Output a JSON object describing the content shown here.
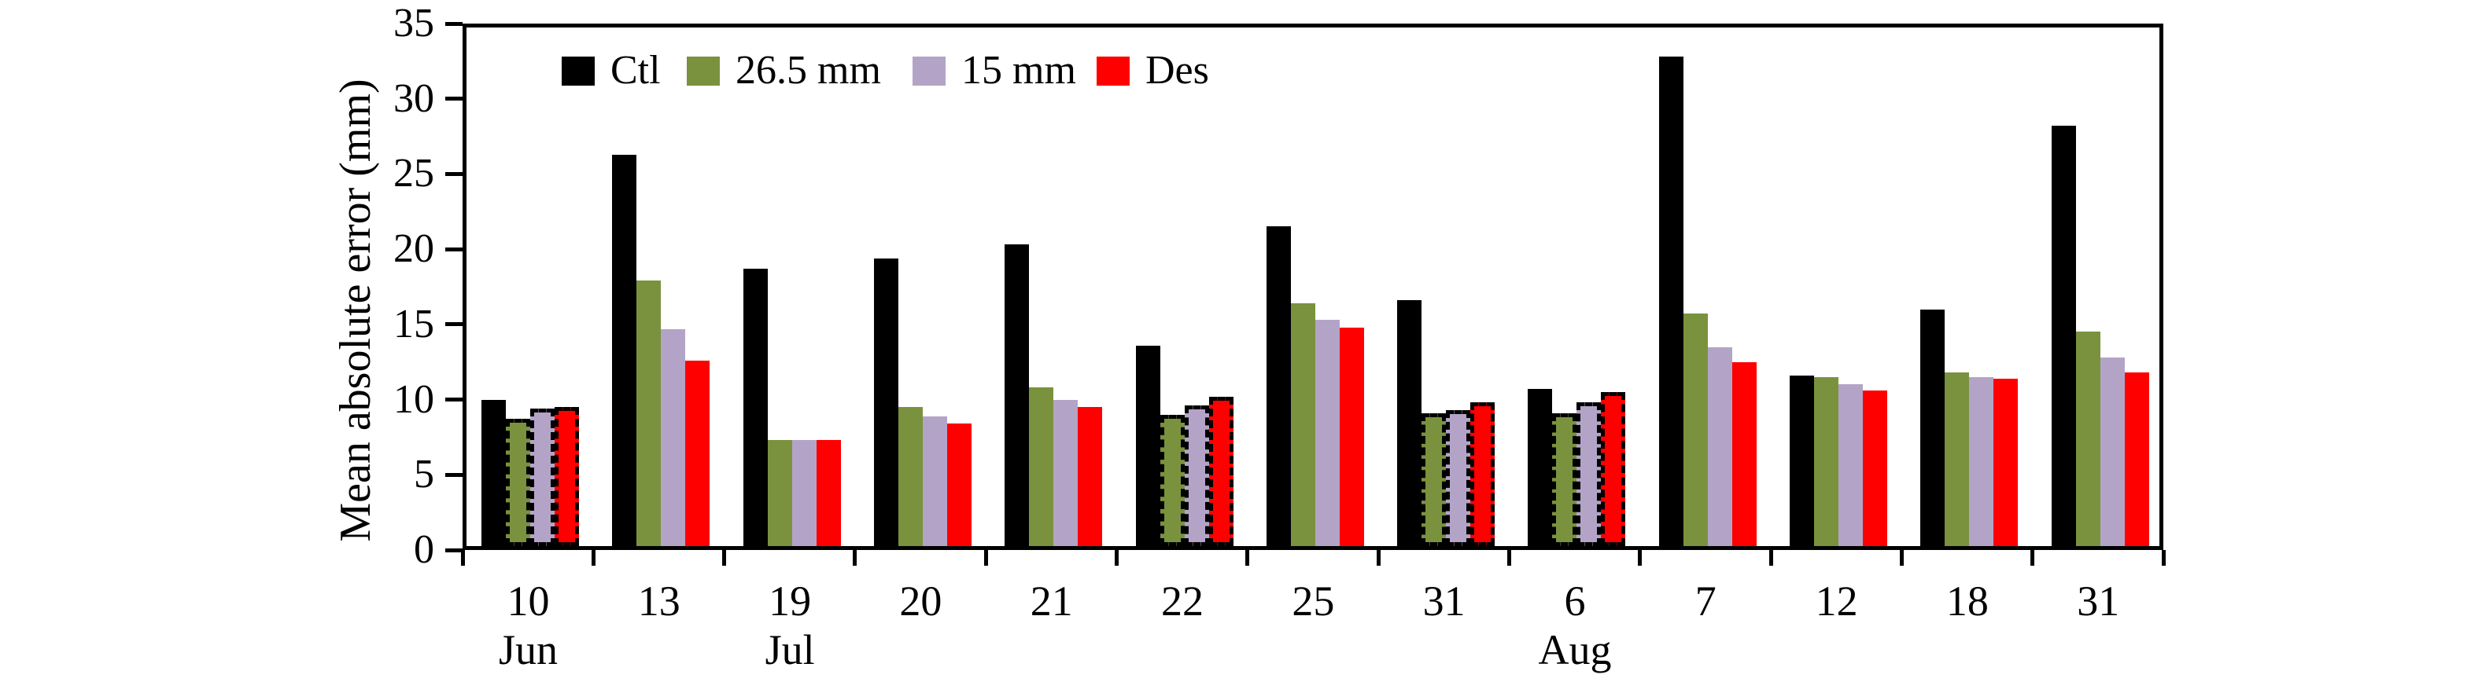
{
  "chart_data": {
    "type": "bar",
    "title": "",
    "xlabel": "",
    "ylabel": "Mean absolute error (mm)",
    "ylim": [
      0,
      35
    ],
    "yticks": [
      0,
      5,
      10,
      15,
      20,
      25,
      30,
      35
    ],
    "grid": false,
    "legend_position": "top-left-inside",
    "categories": [
      "10",
      "13",
      "19",
      "20",
      "21",
      "22",
      "25",
      "31",
      "6",
      "7",
      "12",
      "18",
      "31"
    ],
    "month_labels": [
      {
        "label": "Jun",
        "group_index": 0
      },
      {
        "label": "Jul",
        "group_index": 2
      },
      {
        "label": "Aug",
        "group_index": 8
      }
    ],
    "series": [
      {
        "name": "Ctl",
        "color": "#000000",
        "values": [
          10.0,
          26.3,
          18.7,
          19.4,
          20.3,
          13.6,
          21.5,
          16.6,
          10.7,
          32.8,
          11.6,
          16.0,
          28.2
        ]
      },
      {
        "name": "26.5 mm",
        "color": "#7A923E",
        "values": [
          8.7,
          17.9,
          7.3,
          9.5,
          10.8,
          9.0,
          16.4,
          9.1,
          9.1,
          15.7,
          11.5,
          11.8,
          14.5
        ]
      },
      {
        "name": "15 mm",
        "color": "#B3A4C7",
        "values": [
          9.4,
          14.7,
          7.3,
          8.9,
          10.0,
          9.6,
          15.3,
          9.3,
          9.8,
          13.5,
          11.0,
          11.5,
          12.8
        ]
      },
      {
        "name": "Des",
        "color": "#FF0000",
        "values": [
          9.5,
          12.6,
          7.3,
          8.4,
          9.5,
          10.2,
          14.8,
          9.8,
          10.5,
          12.5,
          10.6,
          11.4,
          11.8
        ]
      }
    ],
    "dashed_outline_groups": [
      0,
      5,
      7,
      8
    ],
    "dashed_outline_note": "In groups Jun 10, Jul 22, Jul 31 and Aug 6 the 26.5 mm, 15 mm and Des bars are drawn with dashed black outlines"
  }
}
